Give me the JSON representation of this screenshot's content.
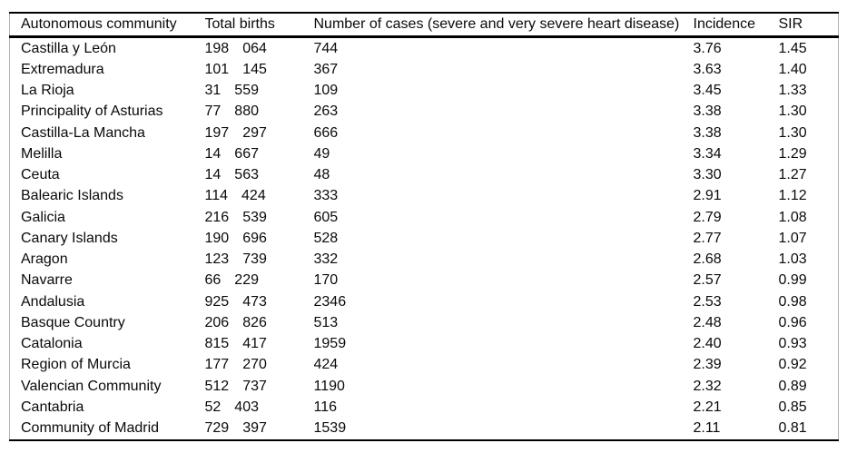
{
  "table": {
    "headers": [
      "Autonomous community",
      "Total births",
      "Number of cases (severe and very severe heart disease)",
      "Incidence",
      "SIR"
    ],
    "rows": [
      {
        "community": "Castilla y León",
        "births": [
          "198",
          "064"
        ],
        "cases": "744",
        "incidence": "3.76",
        "sir": "1.45"
      },
      {
        "community": "Extremadura",
        "births": [
          "101",
          "145"
        ],
        "cases": "367",
        "incidence": "3.63",
        "sir": "1.40"
      },
      {
        "community": "La Rioja",
        "births": [
          "31",
          "559"
        ],
        "cases": "109",
        "incidence": "3.45",
        "sir": "1.33"
      },
      {
        "community": "Principality of Asturias",
        "births": [
          "77",
          "880"
        ],
        "cases": "263",
        "incidence": "3.38",
        "sir": "1.30"
      },
      {
        "community": "Castilla-La Mancha",
        "births": [
          "197",
          "297"
        ],
        "cases": "666",
        "incidence": "3.38",
        "sir": "1.30"
      },
      {
        "community": "Melilla",
        "births": [
          "14",
          "667"
        ],
        "cases": "49",
        "incidence": "3.34",
        "sir": "1.29"
      },
      {
        "community": "Ceuta",
        "births": [
          "14",
          "563"
        ],
        "cases": "48",
        "incidence": "3.30",
        "sir": "1.27"
      },
      {
        "community": "Balearic Islands",
        "births": [
          "114",
          "424"
        ],
        "cases": "333",
        "incidence": "2.91",
        "sir": "1.12"
      },
      {
        "community": "Galicia",
        "births": [
          "216",
          "539"
        ],
        "cases": "605",
        "incidence": "2.79",
        "sir": "1.08"
      },
      {
        "community": "Canary Islands",
        "births": [
          "190",
          "696"
        ],
        "cases": "528",
        "incidence": "2.77",
        "sir": "1.07"
      },
      {
        "community": "Aragon",
        "births": [
          "123",
          "739"
        ],
        "cases": "332",
        "incidence": "2.68",
        "sir": "1.03"
      },
      {
        "community": "Navarre",
        "births": [
          "66",
          "229"
        ],
        "cases": "170",
        "incidence": "2.57",
        "sir": "0.99"
      },
      {
        "community": "Andalusia",
        "births": [
          "925",
          "473"
        ],
        "cases": "2346",
        "incidence": "2.53",
        "sir": "0.98"
      },
      {
        "community": "Basque Country",
        "births": [
          "206",
          "826"
        ],
        "cases": "513",
        "incidence": "2.48",
        "sir": "0.96"
      },
      {
        "community": "Catalonia",
        "births": [
          "815",
          "417"
        ],
        "cases": "1959",
        "incidence": "2.40",
        "sir": "0.93"
      },
      {
        "community": "Region of Murcia",
        "births": [
          "177",
          "270"
        ],
        "cases": "424",
        "incidence": "2.39",
        "sir": "0.92"
      },
      {
        "community": "Valencian Community",
        "births": [
          "512",
          "737"
        ],
        "cases": "1190",
        "incidence": "2.32",
        "sir": "0.89"
      },
      {
        "community": "Cantabria",
        "births": [
          "52",
          "403"
        ],
        "cases": "116",
        "incidence": "2.21",
        "sir": "0.85"
      },
      {
        "community": "Community of Madrid",
        "births": [
          "729",
          "397"
        ],
        "cases": "1539",
        "incidence": "2.11",
        "sir": "0.81"
      }
    ]
  },
  "chart_data": {
    "type": "table",
    "columns": [
      "Autonomous community",
      "Total births",
      "Number of cases (severe and very severe heart disease)",
      "Incidence",
      "SIR"
    ],
    "rows": [
      [
        "Castilla y León",
        198064,
        744,
        3.76,
        1.45
      ],
      [
        "Extremadura",
        101145,
        367,
        3.63,
        1.4
      ],
      [
        "La Rioja",
        31559,
        109,
        3.45,
        1.33
      ],
      [
        "Principality of Asturias",
        77880,
        263,
        3.38,
        1.3
      ],
      [
        "Castilla-La Mancha",
        197297,
        666,
        3.38,
        1.3
      ],
      [
        "Melilla",
        14667,
        49,
        3.34,
        1.29
      ],
      [
        "Ceuta",
        14563,
        48,
        3.3,
        1.27
      ],
      [
        "Balearic Islands",
        114424,
        333,
        2.91,
        1.12
      ],
      [
        "Galicia",
        216539,
        605,
        2.79,
        1.08
      ],
      [
        "Canary Islands",
        190696,
        528,
        2.77,
        1.07
      ],
      [
        "Aragon",
        123739,
        332,
        2.68,
        1.03
      ],
      [
        "Navarre",
        66229,
        170,
        2.57,
        0.99
      ],
      [
        "Andalusia",
        925473,
        2346,
        2.53,
        0.98
      ],
      [
        "Basque Country",
        206826,
        513,
        2.48,
        0.96
      ],
      [
        "Catalonia",
        815417,
        1959,
        2.4,
        0.93
      ],
      [
        "Region of Murcia",
        177270,
        424,
        2.39,
        0.92
      ],
      [
        "Valencian Community",
        512737,
        1190,
        2.32,
        0.89
      ],
      [
        "Cantabria",
        52403,
        116,
        2.21,
        0.85
      ],
      [
        "Community of Madrid",
        729397,
        1539,
        2.11,
        0.81
      ]
    ]
  },
  "colors": {
    "background": "#ffffff",
    "text": "#0a0a0a",
    "rule": "#000000",
    "side_border": "#b3b3b3"
  }
}
